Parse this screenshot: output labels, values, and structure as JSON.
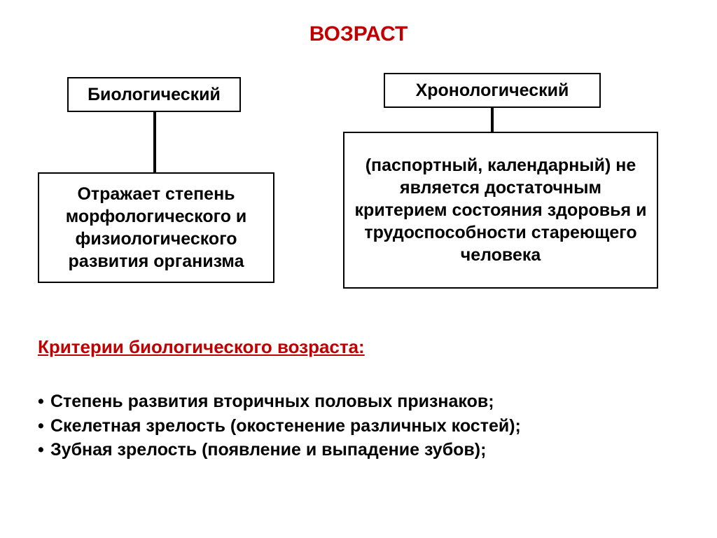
{
  "title": "ВОЗРАСТ",
  "colors": {
    "accent": "#c00000",
    "text": "#000000",
    "border": "#000000",
    "background": "#ffffff"
  },
  "fontsize": {
    "title": 30,
    "box_header": 25,
    "box_body": 25,
    "criteria_title": 26,
    "criteria_item": 25
  },
  "diagram": {
    "type": "tree",
    "bio": {
      "header": "Биологический",
      "desc": "Отражает степень морфологического и физиологического развития организма"
    },
    "chrono": {
      "header": "Хронологический",
      "desc": "(паспортный, календарный) не является достаточным критерием состояния здоровья и трудоспособности стареющего человека"
    }
  },
  "criteria": {
    "title": "Критерии биологического возраста:",
    "items": [
      "Степень развития вторичных половых признаков;",
      "Скелетная зрелость (окостенение различных костей);",
      "Зубная зрелость (появление и выпадение зубов);"
    ]
  }
}
